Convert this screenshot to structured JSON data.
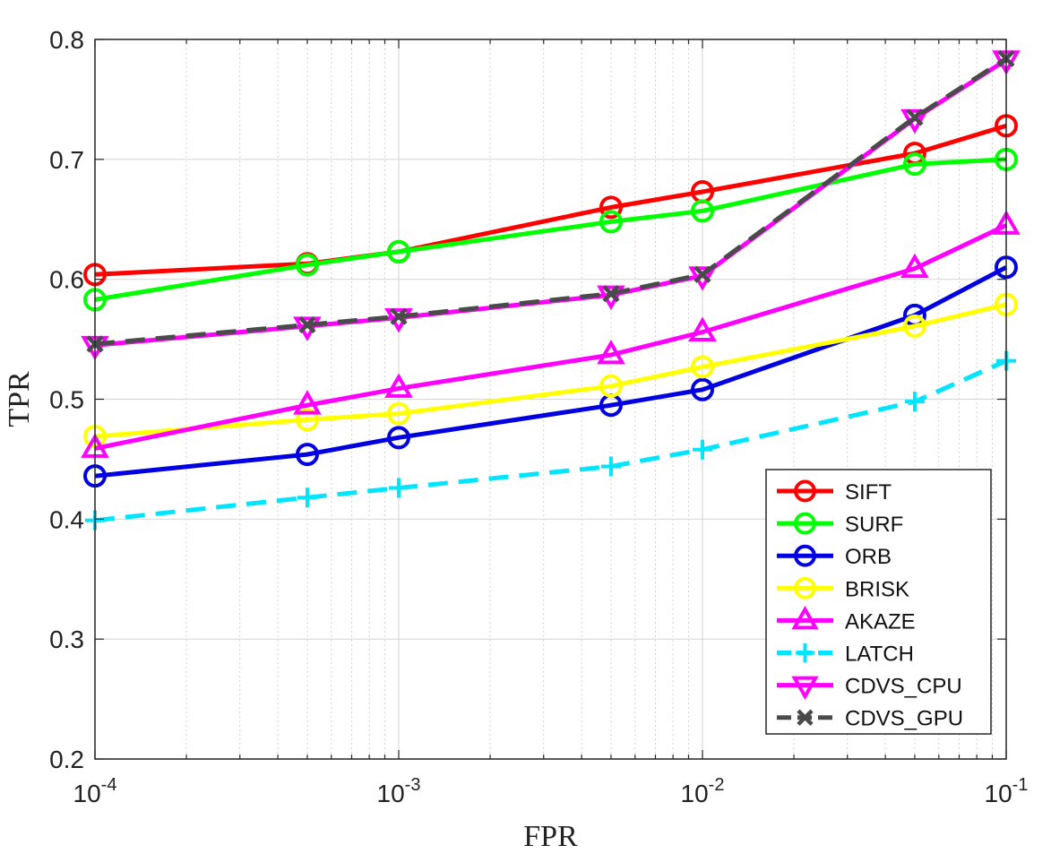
{
  "chart_data": {
    "type": "line",
    "xscale": "log",
    "xlabel": "FPR",
    "ylabel": "TPR",
    "xlim": [
      0.0001,
      0.1
    ],
    "ylim": [
      0.2,
      0.8
    ],
    "grid": true,
    "legend_position": "bottom-right",
    "x_ticks": [
      {
        "value": 0.0001,
        "base": "10",
        "exp": "-4"
      },
      {
        "value": 0.001,
        "base": "10",
        "exp": "-3"
      },
      {
        "value": 0.01,
        "base": "10",
        "exp": "-2"
      },
      {
        "value": 0.1,
        "base": "10",
        "exp": "-1"
      }
    ],
    "y_ticks": [
      {
        "value": 0.2,
        "label": "0.2"
      },
      {
        "value": 0.3,
        "label": "0.3"
      },
      {
        "value": 0.4,
        "label": "0.4"
      },
      {
        "value": 0.5,
        "label": "0.5"
      },
      {
        "value": 0.6,
        "label": "0.6"
      },
      {
        "value": 0.7,
        "label": "0.7"
      },
      {
        "value": 0.8,
        "label": "0.8"
      }
    ],
    "x": [
      0.0001,
      0.0005,
      0.001,
      0.005,
      0.01,
      0.05,
      0.1
    ],
    "series": [
      {
        "name": "SIFT",
        "color": "#ff0000",
        "marker": "circle",
        "dash": "solid",
        "values": [
          0.604,
          0.613,
          0.623,
          0.66,
          0.673,
          0.705,
          0.728
        ]
      },
      {
        "name": "SURF",
        "color": "#00ff00",
        "marker": "circle",
        "dash": "solid",
        "values": [
          0.583,
          0.612,
          0.623,
          0.648,
          0.657,
          0.696,
          0.7
        ]
      },
      {
        "name": "ORB",
        "color": "#0000e0",
        "marker": "circle",
        "dash": "solid",
        "values": [
          0.436,
          0.454,
          0.468,
          0.495,
          0.508,
          0.57,
          0.61
        ]
      },
      {
        "name": "BRISK",
        "color": "#ffff00",
        "marker": "circle",
        "dash": "solid",
        "values": [
          0.469,
          0.483,
          0.488,
          0.511,
          0.527,
          0.561,
          0.579
        ]
      },
      {
        "name": "AKAZE",
        "color": "#ff00ff",
        "marker": "triangle-up",
        "dash": "solid",
        "values": [
          0.459,
          0.495,
          0.509,
          0.537,
          0.556,
          0.609,
          0.645
        ]
      },
      {
        "name": "LATCH",
        "color": "#00e5ff",
        "marker": "plus",
        "dash": "dashed",
        "values": [
          0.399,
          0.418,
          0.426,
          0.444,
          0.458,
          0.498,
          0.532
        ]
      },
      {
        "name": "CDVS_CPU",
        "color": "#ff00ff",
        "marker": "triangle-down",
        "dash": "solid",
        "values": [
          0.545,
          0.561,
          0.568,
          0.587,
          0.603,
          0.734,
          0.783
        ]
      },
      {
        "name": "CDVS_GPU",
        "color": "#4a4a4a",
        "marker": "x",
        "dash": "dashed",
        "values": [
          0.546,
          0.562,
          0.569,
          0.588,
          0.604,
          0.735,
          0.784
        ]
      }
    ]
  }
}
